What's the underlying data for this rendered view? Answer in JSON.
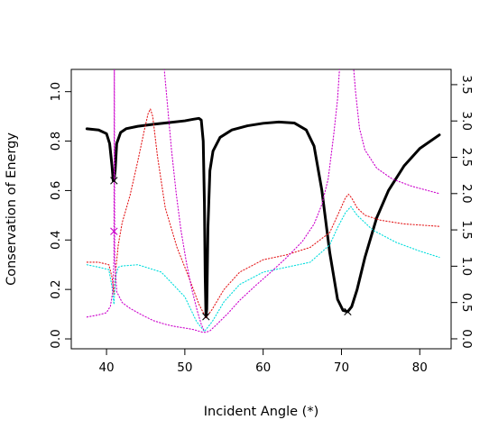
{
  "chart_data": {
    "type": "line",
    "title": "",
    "xlabel": "Incident Angle (*)",
    "ylabel": "Conservation of Energy",
    "y2label": "",
    "xlim": [
      35.5,
      84.0
    ],
    "ylim": [
      -0.04,
      1.09
    ],
    "y2lim": [
      -0.137,
      3.71
    ],
    "x_ticks": [
      40,
      50,
      60,
      70,
      80
    ],
    "y_ticks": [
      0.0,
      0.2,
      0.4,
      0.6,
      0.8,
      1.0
    ],
    "y2_ticks": [
      0.0,
      0.5,
      1.0,
      1.5,
      2.0,
      2.5,
      3.0,
      3.5
    ],
    "grid": false,
    "legend": "none",
    "series": [
      {
        "color": "#000000",
        "style": "solid-thick",
        "x": [
          37.5,
          39.0,
          40.0,
          40.4,
          40.7,
          40.85,
          40.95,
          41.1,
          41.3,
          41.8,
          42.5,
          44,
          46,
          48,
          50,
          51,
          51.8,
          52.1,
          52.35,
          52.5,
          52.6,
          52.7,
          52.8,
          52.95,
          53.2,
          53.6,
          54.5,
          56,
          58,
          60,
          62,
          64,
          65.5,
          66.5,
          67.5,
          68.5,
          69.5,
          70.2,
          70.8,
          71.3,
          72,
          73,
          74.5,
          76,
          78,
          80,
          82.5
        ],
        "y": [
          0.85,
          0.845,
          0.83,
          0.79,
          0.7,
          0.64,
          0.64,
          0.68,
          0.79,
          0.835,
          0.85,
          0.86,
          0.868,
          0.875,
          0.882,
          0.888,
          0.892,
          0.885,
          0.8,
          0.55,
          0.25,
          0.09,
          0.12,
          0.45,
          0.68,
          0.76,
          0.815,
          0.845,
          0.862,
          0.872,
          0.877,
          0.873,
          0.845,
          0.78,
          0.6,
          0.35,
          0.16,
          0.115,
          0.11,
          0.13,
          0.2,
          0.33,
          0.49,
          0.6,
          0.7,
          0.77,
          0.825
        ]
      },
      {
        "color": "#e41a1c",
        "style": "dotted",
        "x": [
          37.5,
          39,
          40.3,
          40.7,
          40.95,
          41.15,
          41.5,
          42,
          43,
          44,
          44.8,
          45.3,
          45.6,
          45.9,
          46.5,
          47.5,
          49,
          50.5,
          51.8,
          52.7,
          53.5,
          55,
          57,
          60,
          63,
          66,
          68.5,
          69.8,
          70.5,
          70.9,
          71.3,
          72,
          73,
          75,
          78,
          82.5
        ],
        "y": [
          0.31,
          0.31,
          0.3,
          0.25,
          0.18,
          0.27,
          0.38,
          0.47,
          0.58,
          0.72,
          0.84,
          0.91,
          0.93,
          0.9,
          0.74,
          0.53,
          0.37,
          0.25,
          0.14,
          0.085,
          0.12,
          0.2,
          0.27,
          0.32,
          0.34,
          0.37,
          0.43,
          0.52,
          0.57,
          0.585,
          0.57,
          0.53,
          0.5,
          0.48,
          0.465,
          0.455
        ]
      },
      {
        "color": "#00dddd",
        "style": "dotted",
        "x": [
          37.5,
          39,
          40.3,
          40.7,
          40.95,
          41.15,
          41.5,
          42,
          44,
          47,
          50,
          51.5,
          52.5,
          53.5,
          55,
          57,
          60,
          63,
          66,
          68.5,
          69.5,
          70.5,
          71.2,
          72,
          74,
          77,
          80,
          82.5
        ],
        "y": [
          0.3,
          0.29,
          0.28,
          0.21,
          0.14,
          0.25,
          0.29,
          0.295,
          0.3,
          0.27,
          0.17,
          0.07,
          0.03,
          0.07,
          0.15,
          0.22,
          0.27,
          0.29,
          0.31,
          0.38,
          0.45,
          0.51,
          0.535,
          0.5,
          0.44,
          0.39,
          0.355,
          0.33
        ]
      },
      {
        "color": "#cc00cc",
        "style": "dotted",
        "axis": "right",
        "x": [
          37.5,
          39,
          40,
          40.5,
          40.8,
          40.95,
          41.0,
          41.05,
          41.3,
          42,
          43,
          44.5,
          46,
          47.5,
          48.5,
          49.2,
          49.8,
          50.5,
          51.2,
          51.8,
          52.3,
          52.7,
          53.2,
          54,
          55.5,
          57,
          59,
          61,
          63,
          65,
          66.5,
          67.5,
          68.3,
          69,
          69.5,
          69.8,
          71.5,
          71.8,
          72.3,
          73,
          74.5,
          76.5,
          79,
          82.5
        ],
        "y": [
          0.3,
          0.33,
          0.36,
          0.45,
          0.65,
          1.1,
          3.8,
          1.1,
          0.65,
          0.5,
          0.42,
          0.33,
          0.25,
          0.2,
          0.175,
          0.162,
          0.152,
          0.14,
          0.125,
          0.105,
          0.09,
          0.09,
          0.11,
          0.19,
          0.35,
          0.53,
          0.73,
          0.92,
          1.12,
          1.34,
          1.58,
          1.85,
          2.2,
          2.8,
          3.3,
          3.8,
          3.8,
          3.4,
          2.9,
          2.6,
          2.35,
          2.2,
          2.1,
          2.0
        ]
      },
      {
        "color": "#cc00cc",
        "style": "dotted",
        "axis": "right",
        "x": [
          40.95,
          41.0,
          41.05
        ],
        "y": [
          3.8,
          3.8,
          3.8
        ]
      },
      {
        "color": "#cc00cc",
        "style": "dotted",
        "axis": "right",
        "x": [
          47.3,
          47.8,
          48.3,
          48.9,
          49.5,
          50.2,
          50.9,
          51.6,
          52.1,
          52.5
        ],
        "y": [
          3.8,
          3.2,
          2.6,
          2.0,
          1.5,
          1.05,
          0.68,
          0.38,
          0.2,
          0.1
        ]
      }
    ],
    "markers": [
      {
        "x": 40.95,
        "y": 0.64,
        "color": "#000000",
        "shape": "x"
      },
      {
        "x": 52.7,
        "y": 0.09,
        "color": "#000000",
        "shape": "x"
      },
      {
        "x": 70.8,
        "y": 0.11,
        "color": "#000000",
        "shape": "x"
      },
      {
        "x": 40.95,
        "y": 0.435,
        "color": "#cc00cc",
        "shape": "x"
      }
    ]
  }
}
